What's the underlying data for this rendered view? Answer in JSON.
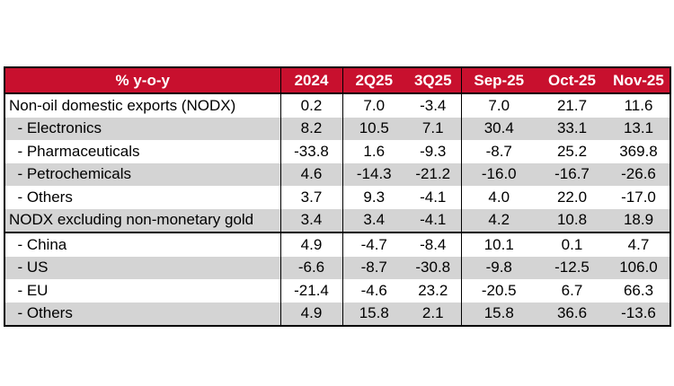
{
  "table": {
    "columns": [
      "% y-o-y",
      "2024",
      "2Q25",
      "3Q25",
      "Sep-25",
      "Oct-25",
      "Nov-25"
    ],
    "rows": [
      {
        "label": "Non-oil domestic exports (NODX)",
        "values": [
          "0.2",
          "7.0",
          "-3.4",
          "7.0",
          "21.7",
          "11.6"
        ],
        "shade": false
      },
      {
        "label": "  - Electronics",
        "values": [
          "8.2",
          "10.5",
          "7.1",
          "30.4",
          "33.1",
          "13.1"
        ],
        "shade": true
      },
      {
        "label": "  - Pharmaceuticals",
        "values": [
          "-33.8",
          "1.6",
          "-9.3",
          "-8.7",
          "25.2",
          "369.8"
        ],
        "shade": false
      },
      {
        "label": "  - Petrochemicals",
        "values": [
          "4.6",
          "-14.3",
          "-21.2",
          "-16.0",
          "-16.7",
          "-26.6"
        ],
        "shade": true
      },
      {
        "label": "  - Others",
        "values": [
          "3.7",
          "9.3",
          "-4.1",
          "4.0",
          "22.0",
          "-17.0"
        ],
        "shade": false
      },
      {
        "label": "NODX excluding non-monetary gold",
        "values": [
          "3.4",
          "3.4",
          "-4.1",
          "4.2",
          "10.8",
          "18.9"
        ],
        "shade": true
      },
      {
        "label": "  - China",
        "values": [
          "4.9",
          "-4.7",
          "-8.4",
          "10.1",
          "0.1",
          "4.7"
        ],
        "shade": false
      },
      {
        "label": "  - US",
        "values": [
          "-6.6",
          "-8.7",
          "-30.8",
          "-9.8",
          "-12.5",
          "106.0"
        ],
        "shade": true
      },
      {
        "label": "  - EU",
        "values": [
          "-21.4",
          "-4.6",
          "23.2",
          "-20.5",
          "6.7",
          "66.3"
        ],
        "shade": false
      },
      {
        "label": "  - Others",
        "values": [
          "4.9",
          "15.8",
          "2.1",
          "15.8",
          "36.6",
          "-13.6"
        ],
        "shade": true
      }
    ]
  },
  "colors": {
    "header_bg": "#c8102e",
    "header_text": "#ffffff",
    "shade": "#d4d4d4"
  }
}
